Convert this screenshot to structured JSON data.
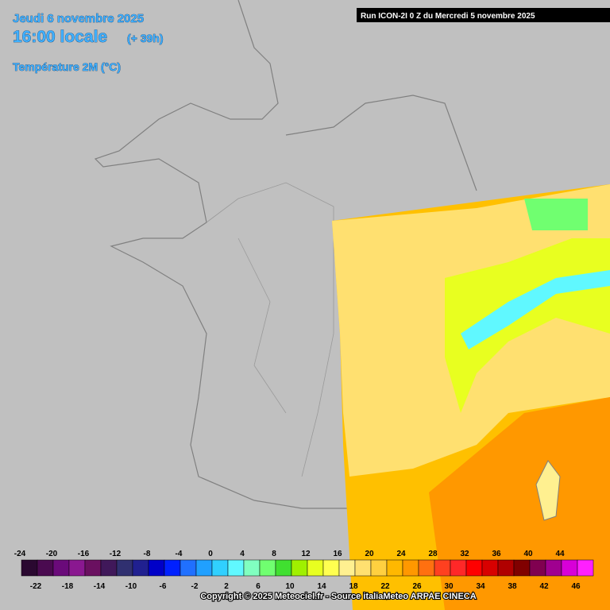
{
  "header": {
    "date": "Jeudi 6 novembre 2025",
    "time": "16:00 locale",
    "offset": "(+ 39h)",
    "variable": "Température 2M (°C)",
    "run": "Run ICON-2I 0 Z du Mercredi 5 novembre 2025"
  },
  "legend": {
    "values": [
      -24,
      -22,
      -20,
      -18,
      -16,
      -14,
      -12,
      -10,
      -8,
      -6,
      -4,
      -2,
      0,
      2,
      4,
      6,
      8,
      10,
      12,
      14,
      16,
      18,
      20,
      22,
      24,
      26,
      28,
      30,
      32,
      34,
      36,
      38,
      40,
      42,
      44,
      46
    ],
    "colors": [
      "#2a0830",
      "#4a0a50",
      "#6a0a7a",
      "#8a1890",
      "#6a1060",
      "#40185a",
      "#303070",
      "#202090",
      "#0000c8",
      "#0020ff",
      "#2070ff",
      "#20a0ff",
      "#30d0ff",
      "#60f8ff",
      "#80ffc0",
      "#70ff70",
      "#40e030",
      "#a0f000",
      "#e8ff20",
      "#ffff50",
      "#fff090",
      "#ffe070",
      "#ffd040",
      "#ffb800",
      "#ff9800",
      "#ff7010",
      "#ff4020",
      "#ff2828",
      "#ff0000",
      "#d80000",
      "#b00000",
      "#800000",
      "#800050",
      "#a00090",
      "#d800d8",
      "#ff20ff"
    ]
  },
  "footer": {
    "copyright": "Copyright © 2025 Meteociel.fr - Source italiaMeteo ARPAE CINECA"
  }
}
